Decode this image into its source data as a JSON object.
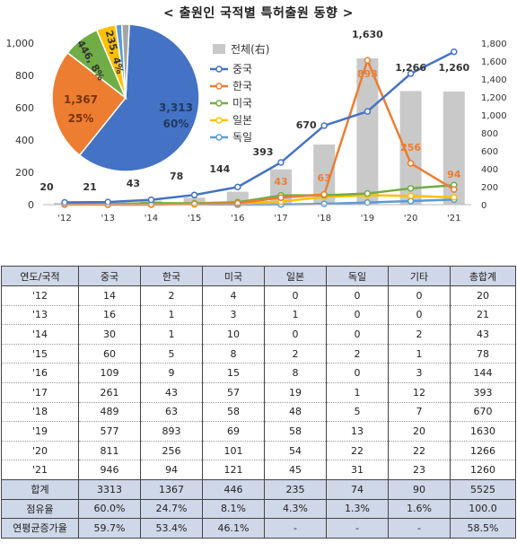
{
  "title": "< 출원인 국적별 특허출원 동향 >",
  "chart_data": [
    {
      "type": "line",
      "x": [
        "'12",
        "'13",
        "'14",
        "'15",
        "'16",
        "'17",
        "'18",
        "'19",
        "'20",
        "'21"
      ],
      "bars": {
        "name": "전체(右)",
        "values": [
          20,
          21,
          43,
          78,
          144,
          393,
          670,
          1630,
          1266,
          1260
        ]
      },
      "series": [
        {
          "name": "중국",
          "values": [
            14,
            16,
            30,
            60,
            109,
            261,
            489,
            577,
            811,
            946
          ],
          "color": "#4472c4"
        },
        {
          "name": "한국",
          "values": [
            2,
            1,
            1,
            5,
            9,
            43,
            63,
            893,
            256,
            94
          ],
          "color": "#ed7d31"
        },
        {
          "name": "미국",
          "values": [
            4,
            3,
            10,
            8,
            15,
            57,
            58,
            69,
            101,
            121
          ],
          "color": "#70ad47"
        },
        {
          "name": "일본",
          "values": [
            0,
            1,
            0,
            2,
            8,
            19,
            48,
            58,
            54,
            45
          ],
          "color": "#ffc000"
        },
        {
          "name": "독일",
          "values": [
            0,
            0,
            0,
            2,
            0,
            1,
            5,
            13,
            22,
            31
          ],
          "color": "#5b9bd5"
        }
      ],
      "y_left_ticks": [
        "0",
        "200",
        "400",
        "600",
        "800",
        "1,000"
      ],
      "y_right_ticks": [
        "0",
        "200",
        "400",
        "600",
        "800",
        "1,000",
        "1,200",
        "1,400",
        "1,600",
        "1,800"
      ],
      "ylim_left": [
        0,
        1000
      ],
      "ylim_right": [
        0,
        1800
      ],
      "bar_labels": [
        "20",
        "21",
        "43",
        "78",
        "144",
        "393",
        "670",
        "1,630",
        "1,266",
        "1,260"
      ],
      "korea_labels": [
        {
          "i": 5,
          "text": "43"
        },
        {
          "i": 6,
          "text": "63"
        },
        {
          "i": 7,
          "text": "893"
        },
        {
          "i": 8,
          "text": "256"
        },
        {
          "i": 9,
          "text": "94"
        }
      ],
      "legend_placement": "center",
      "bar_color": "#c9c9c9"
    },
    {
      "type": "pie",
      "slices": [
        {
          "name": "중국",
          "value": 3313,
          "label": "3,313",
          "pct": "60%",
          "color": "#4472c4"
        },
        {
          "name": "한국",
          "value": 1367,
          "label": "1,367",
          "pct": "25%",
          "color": "#ed7d31"
        },
        {
          "name": "미국",
          "value": 446,
          "label": "446, 8%",
          "color": "#70ad47"
        },
        {
          "name": "일본",
          "value": 235,
          "label": "235, 4%",
          "color": "#ffc000"
        },
        {
          "name": "독일",
          "value": 74,
          "color": "#5b9bd5"
        },
        {
          "name": "기타",
          "value": 90,
          "color": "#a5a5a5"
        }
      ]
    }
  ],
  "table": {
    "headers": [
      "연도/국적",
      "중국",
      "한국",
      "미국",
      "일본",
      "독일",
      "기타",
      "총합계"
    ],
    "rows": [
      [
        "'12",
        "14",
        "2",
        "4",
        "0",
        "0",
        "0",
        "20"
      ],
      [
        "'13",
        "16",
        "1",
        "3",
        "1",
        "0",
        "0",
        "21"
      ],
      [
        "'14",
        "30",
        "1",
        "10",
        "0",
        "0",
        "2",
        "43"
      ],
      [
        "'15",
        "60",
        "5",
        "8",
        "2",
        "2",
        "1",
        "78"
      ],
      [
        "'16",
        "109",
        "9",
        "15",
        "8",
        "0",
        "3",
        "144"
      ],
      [
        "'17",
        "261",
        "43",
        "57",
        "19",
        "1",
        "12",
        "393"
      ],
      [
        "'18",
        "489",
        "63",
        "58",
        "48",
        "5",
        "7",
        "670"
      ],
      [
        "'19",
        "577",
        "893",
        "69",
        "58",
        "13",
        "20",
        "1630"
      ],
      [
        "'20",
        "811",
        "256",
        "101",
        "54",
        "22",
        "22",
        "1266"
      ],
      [
        "'21",
        "946",
        "94",
        "121",
        "45",
        "31",
        "23",
        "1260"
      ]
    ],
    "footer": [
      [
        "합계",
        "3313",
        "1367",
        "446",
        "235",
        "74",
        "90",
        "5525"
      ],
      [
        "점유율",
        "60.0%",
        "24.7%",
        "8.1%",
        "4.3%",
        "1.3%",
        "1.6%",
        "100.0"
      ],
      [
        "연평균증가율",
        "59.7%",
        "53.4%",
        "46.1%",
        "-",
        "-",
        "-",
        "58.5%"
      ]
    ]
  }
}
